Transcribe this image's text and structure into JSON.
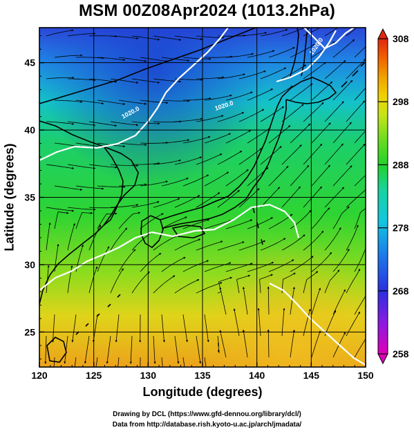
{
  "title": "MSM 00Z08Apr2024 (1013.2hPa)",
  "chart_data": {
    "type": "map",
    "variable": "temperature (K) with wind streamlines",
    "title": "MSM 00Z08Apr2024 (1013.2hPa)",
    "xlabel": "Longitude (degrees)",
    "ylabel": "Latitude  (degrees)",
    "xlim": [
      120,
      150
    ],
    "ylim": [
      22.4,
      47.6
    ],
    "x_ticks": [
      120,
      125,
      130,
      135,
      140,
      145,
      150
    ],
    "y_ticks": [
      25,
      30,
      35,
      40,
      45
    ],
    "grid": true,
    "colorbar": {
      "ticks": [
        258,
        268,
        278,
        288,
        298,
        308
      ],
      "range": [
        258,
        308
      ],
      "colors": [
        "#e000b8",
        "#8a1be0",
        "#2a30e0",
        "#1b7fe8",
        "#12c6e0",
        "#18d3a0",
        "#22d22a",
        "#6cdc20",
        "#c8e418",
        "#f0d000",
        "#f0a000",
        "#f06000",
        "#e02810"
      ]
    },
    "contour_labels": [
      "1020.0",
      "1020.0",
      "1020.0"
    ],
    "colors": {
      "cold": "#2b47d8",
      "mid": "#20c864",
      "warm": "#e8a818",
      "coast": "#000000",
      "contour": "#ffffff"
    }
  },
  "credits": {
    "line1": "Drawing by DCL (https://www.gfd-dennou.org/library/dcl/)",
    "line2": "Data from http://database.rish.kyoto-u.ac.jp/arch/jmadata/"
  }
}
